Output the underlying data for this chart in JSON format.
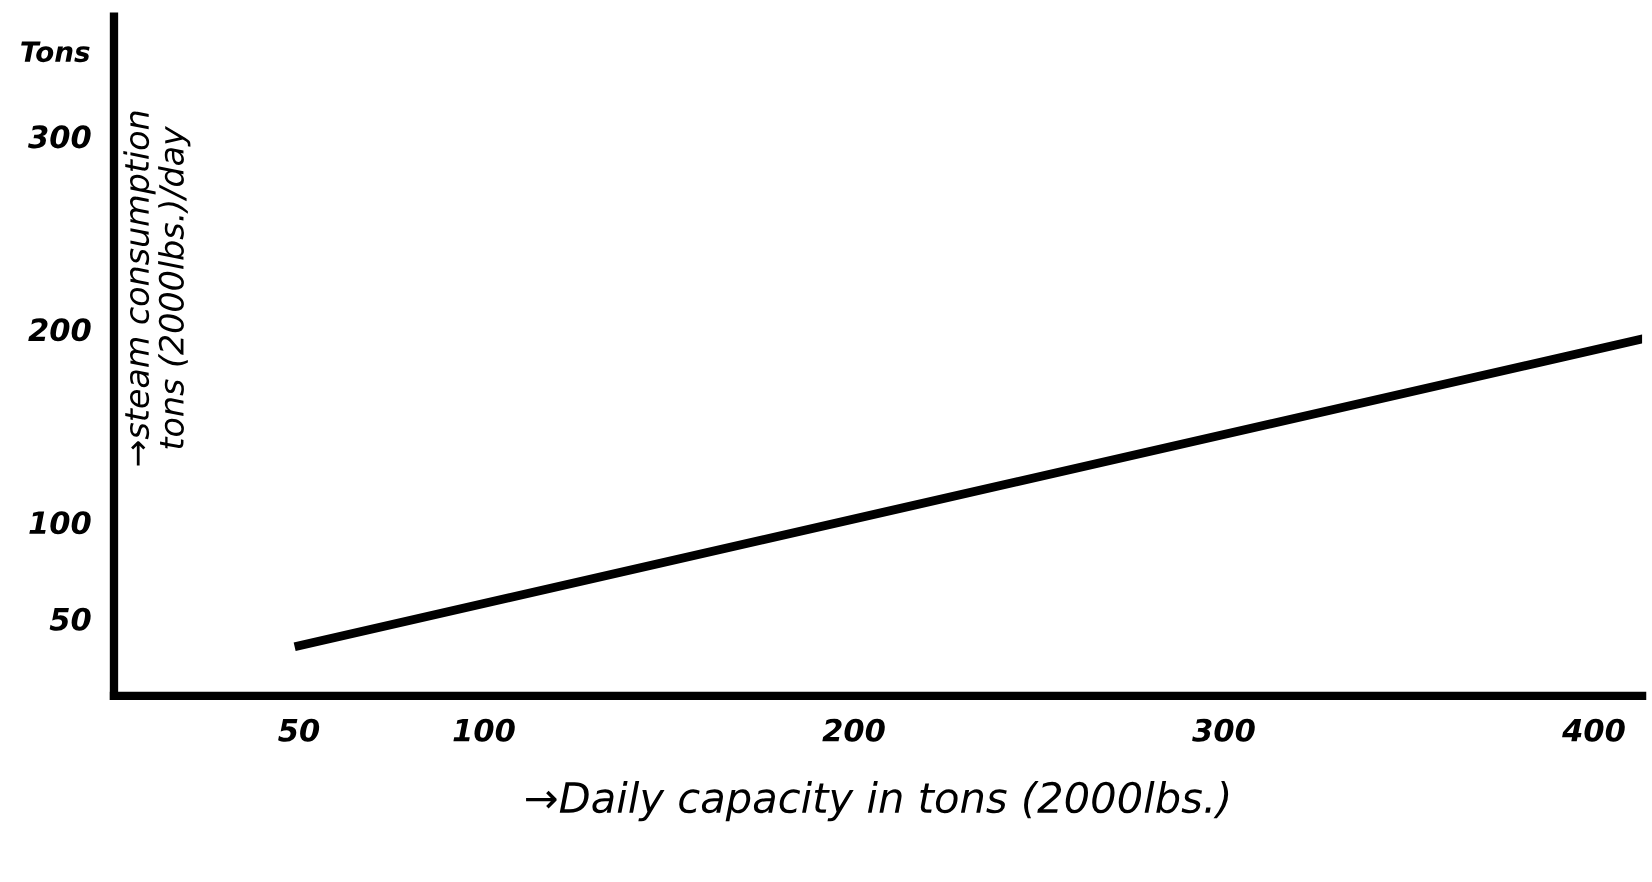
{
  "chart_data": {
    "type": "line",
    "xlabel": "→Daily capacity in tons (2000lbs.)",
    "ylabel": "→steam consumption\ntons (2000lbs.)/day",
    "annotations": [
      "Tons"
    ],
    "x": [
      50,
      413
    ],
    "series": [
      {
        "color": "#000000",
        "values": [
          36,
          195
        ]
      }
    ],
    "xlim": [
      0,
      413
    ],
    "xticks": [
      50,
      100,
      200,
      300,
      400
    ],
    "ylim": [
      10,
      362
    ],
    "yticks": [
      50,
      100,
      200,
      300
    ],
    "grid": false,
    "legend": false,
    "marker": "none",
    "line_style": "solid"
  }
}
